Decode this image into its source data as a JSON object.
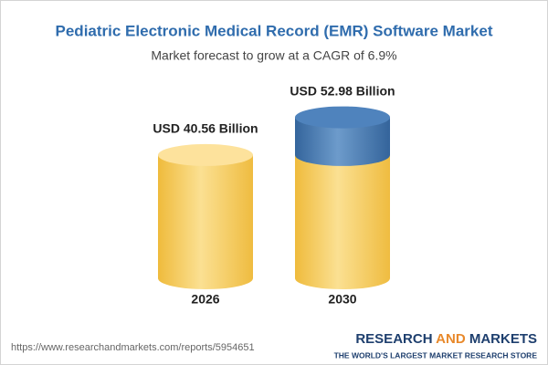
{
  "chart_data": {
    "type": "cylinder",
    "title": "Pediatric Electronic Medical Record (EMR) Software Market",
    "subtitle": "Market forecast to grow at a CAGR of 6.9%",
    "categories": [
      "2026",
      "2030"
    ],
    "values": [
      40.56,
      52.98
    ],
    "value_labels": [
      "USD 40.56 Billion",
      "USD 52.98 Billion"
    ],
    "colors": {
      "base": "#f5c64e",
      "growth": "#3f72ab"
    }
  },
  "footer": {
    "url": "https://www.researchandmarkets.com/reports/5954651",
    "brand": [
      "RESEARCH",
      "AND",
      "MARKETS"
    ],
    "tagline": "THE WORLD'S LARGEST MARKET RESEARCH STORE"
  }
}
